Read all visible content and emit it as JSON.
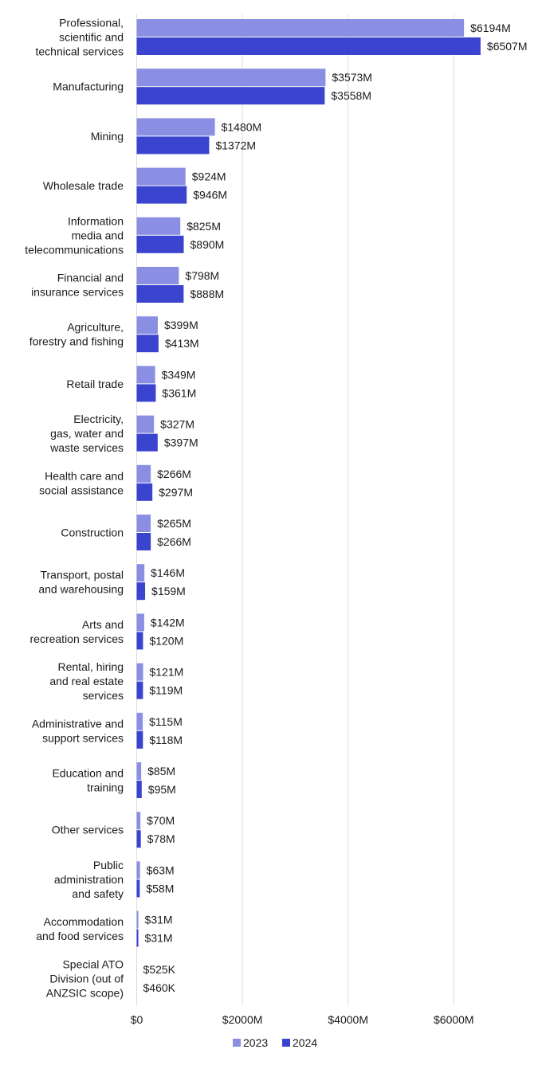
{
  "chart_data": {
    "type": "bar",
    "orientation": "horizontal",
    "title": "",
    "xlabel": "",
    "ylabel": "",
    "xlim": [
      0,
      6600
    ],
    "x_ticks": [
      0,
      2000,
      4000,
      6000
    ],
    "x_tick_labels": [
      "$0",
      "$2000M",
      "$4000M",
      "$6000M"
    ],
    "grid": "vertical",
    "legend_position": "bottom-center",
    "colors": {
      "2023": "#8a8fe3",
      "2024": "#3a44cf",
      "grid": "#dcdcdc",
      "text": "#1a1a1a"
    },
    "categories": [
      "Professional, scientific and technical services",
      "Manufacturing",
      "Mining",
      "Wholesale trade",
      "Information media and telecommunications",
      "Financial and insurance services",
      "Agriculture, forestry and fishing",
      "Retail trade",
      "Electricity, gas, water and waste services",
      "Health care and social assistance",
      "Construction",
      "Transport, postal and warehousing",
      "Arts and recreation services",
      "Rental, hiring and real estate services",
      "Administrative and support services",
      "Education and training",
      "Other services",
      "Public administration and safety",
      "Accommodation and food services",
      "Special ATO Division (out of ANZSIC scope)"
    ],
    "category_label_lines": [
      [
        "Professional,",
        "scientific and",
        "technical services"
      ],
      [
        "Manufacturing"
      ],
      [
        "Mining"
      ],
      [
        "Wholesale trade"
      ],
      [
        "Information",
        "media and",
        "telecommunications"
      ],
      [
        "Financial and",
        "insurance services"
      ],
      [
        "Agriculture,",
        "forestry and fishing"
      ],
      [
        "Retail trade"
      ],
      [
        "Electricity,",
        "gas, water and",
        "waste services"
      ],
      [
        "Health care and",
        "social assistance"
      ],
      [
        "Construction"
      ],
      [
        "Transport, postal",
        "and warehousing"
      ],
      [
        "Arts and",
        "recreation services"
      ],
      [
        "Rental, hiring",
        "and real estate",
        "services"
      ],
      [
        "Administrative and",
        "support services"
      ],
      [
        "Education and",
        "training"
      ],
      [
        "Other services"
      ],
      [
        "Public",
        "administration",
        "and safety"
      ],
      [
        "Accommodation",
        "and food services"
      ],
      [
        "Special ATO",
        "Division (out of",
        "ANZSIC scope)"
      ]
    ],
    "series": [
      {
        "name": "2023",
        "values": [
          6194,
          3573,
          1480,
          924,
          825,
          798,
          399,
          349,
          327,
          266,
          265,
          146,
          142,
          121,
          115,
          85,
          70,
          63,
          31,
          0.525
        ],
        "labels": [
          "$6194M",
          "$3573M",
          "$1480M",
          "$924M",
          "$825M",
          "$798M",
          "$399M",
          "$349M",
          "$327M",
          "$266M",
          "$265M",
          "$146M",
          "$142M",
          "$121M",
          "$115M",
          "$85M",
          "$70M",
          "$63M",
          "$31M",
          "$525K"
        ]
      },
      {
        "name": "2024",
        "values": [
          6507,
          3558,
          1372,
          946,
          890,
          888,
          413,
          361,
          397,
          297,
          266,
          159,
          120,
          119,
          118,
          95,
          78,
          58,
          31,
          0.46
        ],
        "labels": [
          "$6507M",
          "$3558M",
          "$1372M",
          "$946M",
          "$890M",
          "$888M",
          "$413M",
          "$361M",
          "$397M",
          "$297M",
          "$266M",
          "$159M",
          "$120M",
          "$119M",
          "$118M",
          "$95M",
          "$78M",
          "$58M",
          "$31M",
          "$460K"
        ]
      }
    ]
  }
}
